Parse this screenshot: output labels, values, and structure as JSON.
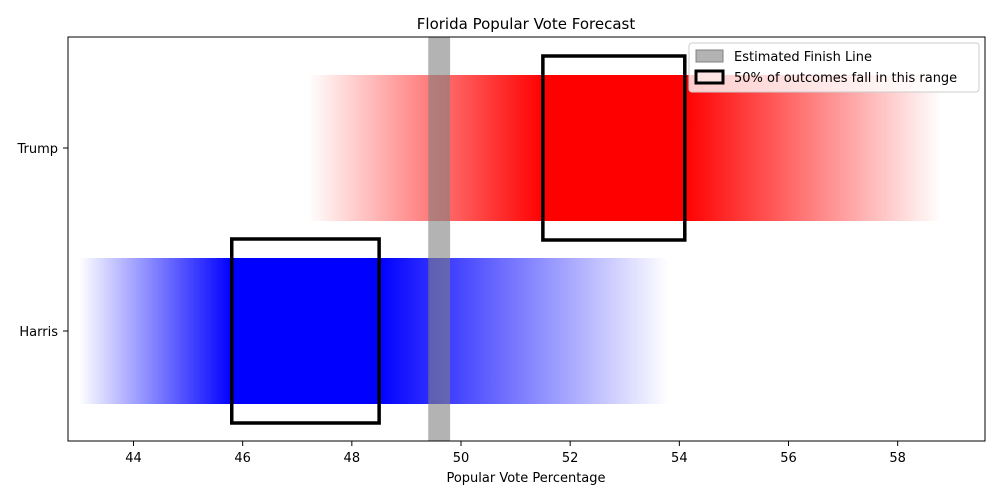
{
  "chart_data": {
    "type": "bar",
    "title": "Florida Popular Vote Forecast",
    "xlabel": "Popular Vote Percentage",
    "ylabel": "",
    "xlim": [
      42.8,
      59.6
    ],
    "x_ticks": [
      44,
      46,
      48,
      50,
      52,
      54,
      56,
      58
    ],
    "grid": false,
    "legend_position": "top-right",
    "categories": [
      "Trump",
      "Harris"
    ],
    "series": [
      {
        "name": "Trump",
        "color": "#ff0000",
        "range": [
          47.2,
          58.8
        ],
        "core_range": [
          51.5,
          54.1
        ],
        "interquartile_range": [
          51.5,
          54.1
        ]
      },
      {
        "name": "Harris",
        "color": "#0000ff",
        "range": [
          43.0,
          53.8
        ],
        "core_range": [
          45.8,
          48.5
        ],
        "interquartile_range": [
          45.8,
          48.5
        ]
      }
    ],
    "finish_line": {
      "range": [
        49.4,
        49.8
      ],
      "color": "#808080"
    },
    "legend": [
      {
        "label": "Estimated Finish Line",
        "swatch": "gray-fill"
      },
      {
        "label": "50% of outcomes fall in this range",
        "swatch": "black-outline-box"
      }
    ]
  }
}
